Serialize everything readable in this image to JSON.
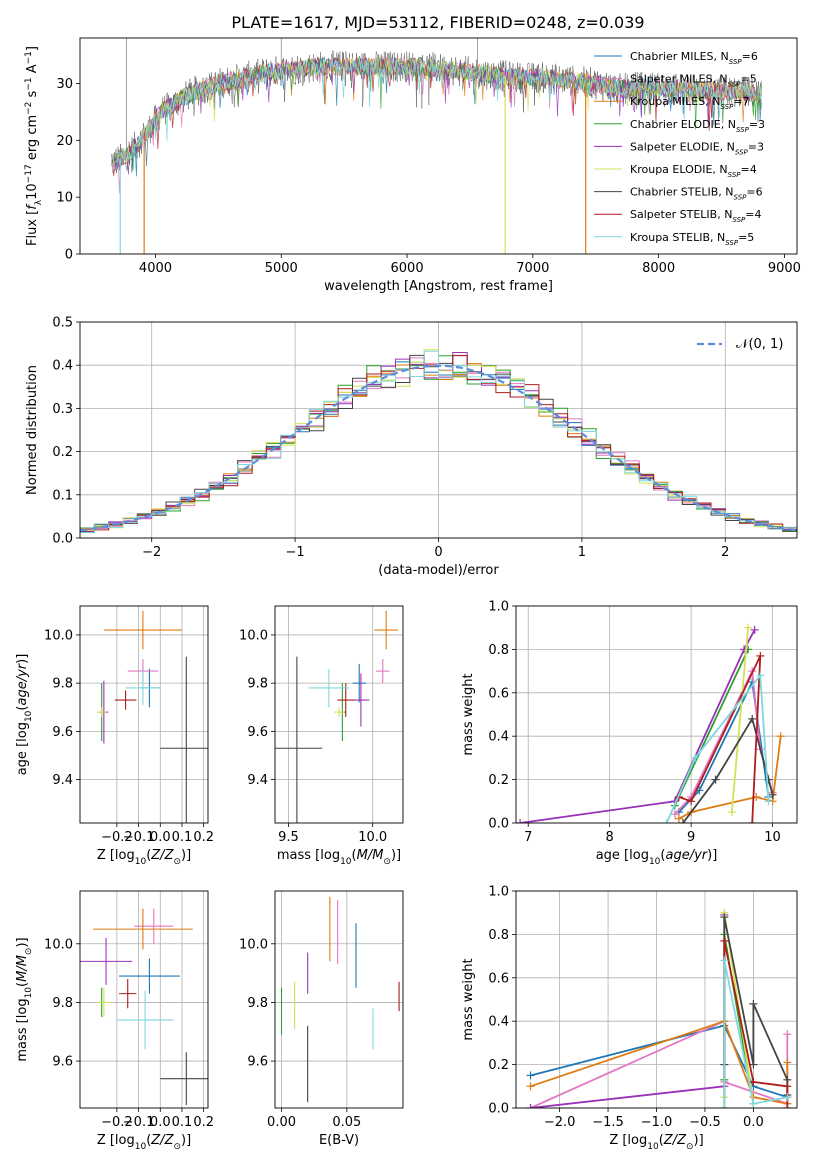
{
  "figure_title": "PLATE=1617, MJD=53112, FIBERID=0248, z=0.039",
  "colors": {
    "chabrier_miles": "#1f77b4",
    "salpeter_miles": "#e377c2",
    "kroupa_miles": "#e07b12",
    "chabrier_elodie": "#2ca02c",
    "salpeter_elodie": "#9b30b8",
    "kroupa_elodie": "#d4e157",
    "chabrier_stelib": "#444444",
    "salpeter_stelib": "#b01c1c",
    "kroupa_stelib": "#7fd8dd",
    "normal_curve": "#5b8fdb"
  },
  "chart_data": [
    {
      "id": "spectrum",
      "type": "line",
      "xlabel": "wavelength [Angstrom, rest frame]",
      "ylabel": "Flux [f_λ10^-17 erg cm^-2 s^-1 A^-1]",
      "xlim": [
        3400,
        9100
      ],
      "ylim": [
        0,
        38
      ],
      "xticks": [
        4000,
        5000,
        6000,
        7000,
        8000,
        9000
      ],
      "yticks": [
        0,
        10,
        20,
        30
      ],
      "legend_position": "upper-right",
      "series": [
        {
          "name": "Chabrier MILES, N_SSP=6",
          "color_key": "chabrier_miles"
        },
        {
          "name": "Salpeter MILES, N_SSP=5",
          "color_key": "salpeter_miles"
        },
        {
          "name": "Kroupa MILES, N_SSP=7",
          "color_key": "kroupa_miles"
        },
        {
          "name": "Chabrier ELODIE, N_SSP=3",
          "color_key": "chabrier_elodie"
        },
        {
          "name": "Salpeter ELODIE, N_SSP=3",
          "color_key": "salpeter_elodie"
        },
        {
          "name": "Kroupa ELODIE, N_SSP=4",
          "color_key": "kroupa_elodie"
        },
        {
          "name": "Chabrier STELIB, N_SSP=6",
          "color_key": "chabrier_stelib"
        },
        {
          "name": "Salpeter STELIB, N_SSP=4",
          "color_key": "salpeter_stelib"
        },
        {
          "name": "Kroupa STELIB, N_SSP=5",
          "color_key": "kroupa_stelib"
        }
      ],
      "continuum": {
        "x": [
          3650,
          3750,
          3850,
          3950,
          4050,
          4150,
          4300,
          4500,
          4700,
          4900,
          5100,
          5300,
          5500,
          5700,
          5900,
          6100,
          6300,
          6500,
          6700,
          6900,
          7100,
          7300,
          7500,
          7700,
          7900,
          8100,
          8300,
          8500,
          8700,
          8820
        ],
        "y": [
          16,
          17,
          19,
          22,
          25,
          26.5,
          28.5,
          30,
          31,
          32,
          32.5,
          33,
          33,
          33,
          33,
          33,
          32.5,
          32,
          31.5,
          31,
          31,
          30.5,
          30,
          29,
          29.5,
          29,
          29,
          28.5,
          28.5,
          28
        ]
      },
      "dips": [
        {
          "x": 3720,
          "y": 0,
          "color_key": "kroupa_stelib"
        },
        {
          "x": 3910,
          "y": 0,
          "color_key": "kroupa_miles"
        },
        {
          "x": 6780,
          "y": 0,
          "color_key": "kroupa_elodie"
        },
        {
          "x": 7420,
          "y": 0,
          "color_key": "kroupa_miles"
        }
      ]
    },
    {
      "id": "residuals",
      "type": "histogram",
      "xlabel": "(data-model)/error",
      "ylabel": "Normed distribution",
      "xlim": [
        -2.5,
        2.5
      ],
      "ylim": [
        0,
        0.5
      ],
      "xticks": [
        -2,
        -1,
        0,
        1,
        2
      ],
      "yticks": [
        0.0,
        0.1,
        0.2,
        0.3,
        0.4,
        0.5
      ],
      "legend_position": "upper-right",
      "legend": [
        {
          "name": "𝒩(0, 1)",
          "color_key": "normal_curve",
          "style": "dashed"
        }
      ],
      "bin_width": 0.1
    },
    {
      "id": "age_vs_Z",
      "type": "errorbar",
      "xlabel": "Z [log10(Z/Z⊙)]",
      "ylabel": "age [log10(age/yr)]",
      "xlim": [
        -0.37,
        0.22
      ],
      "ylim": [
        9.22,
        10.12
      ],
      "xticks": [
        -0.2,
        -0.1,
        0.0,
        0.1,
        0.2
      ],
      "yticks": [
        9.4,
        9.6,
        9.8,
        10.0
      ],
      "points": [
        {
          "x": -0.05,
          "xerr": 0.05,
          "y": 9.78,
          "yerr": 0.08,
          "color_key": "chabrier_miles"
        },
        {
          "x": -0.08,
          "xerr": 0.07,
          "y": 9.85,
          "yerr": 0.05,
          "color_key": "salpeter_miles"
        },
        {
          "x": -0.08,
          "xerr": 0.18,
          "y": 10.02,
          "yerr": 0.08,
          "color_key": "kroupa_miles"
        },
        {
          "x": -0.27,
          "xerr": 0.02,
          "y": 9.68,
          "yerr": 0.12,
          "color_key": "chabrier_elodie"
        },
        {
          "x": -0.26,
          "xerr": 0.02,
          "y": 9.68,
          "yerr": 0.13,
          "color_key": "salpeter_elodie"
        },
        {
          "x": -0.27,
          "xerr": 0.02,
          "y": 9.68,
          "yerr": 0.02,
          "color_key": "kroupa_elodie"
        },
        {
          "x": 0.12,
          "xerr": 0.12,
          "y": 9.53,
          "yerr": 0.38,
          "color_key": "chabrier_stelib"
        },
        {
          "x": -0.16,
          "xerr": 0.05,
          "y": 9.73,
          "yerr": 0.04,
          "color_key": "salpeter_stelib"
        },
        {
          "x": -0.08,
          "xerr": 0.08,
          "y": 9.78,
          "yerr": 0.07,
          "color_key": "kroupa_stelib"
        }
      ]
    },
    {
      "id": "age_vs_mass",
      "type": "errorbar",
      "xlabel": "mass [log10(M/M⊙)]",
      "ylabel": "",
      "xlim": [
        9.42,
        10.18
      ],
      "ylim": [
        9.22,
        10.12
      ],
      "xticks": [
        9.5,
        10.0
      ],
      "yticks": [
        9.4,
        9.6,
        9.8,
        10.0
      ],
      "points": [
        {
          "x": 9.92,
          "xerr": 0.04,
          "y": 9.8,
          "yerr": 0.08,
          "color_key": "chabrier_miles"
        },
        {
          "x": 10.06,
          "xerr": 0.04,
          "y": 9.85,
          "yerr": 0.05,
          "color_key": "salpeter_miles"
        },
        {
          "x": 10.08,
          "xerr": 0.07,
          "y": 10.02,
          "yerr": 0.08,
          "color_key": "kroupa_miles"
        },
        {
          "x": 9.82,
          "xerr": 0.02,
          "y": 9.68,
          "yerr": 0.12,
          "color_key": "chabrier_elodie"
        },
        {
          "x": 9.93,
          "xerr": 0.05,
          "y": 9.73,
          "yerr": 0.11,
          "color_key": "salpeter_elodie"
        },
        {
          "x": 9.8,
          "xerr": 0.03,
          "y": 9.68,
          "yerr": 0.02,
          "color_key": "kroupa_elodie"
        },
        {
          "x": 9.55,
          "xerr": 0.15,
          "y": 9.53,
          "yerr": 0.38,
          "color_key": "chabrier_stelib"
        },
        {
          "x": 9.84,
          "xerr": 0.05,
          "y": 9.73,
          "yerr": 0.07,
          "color_key": "salpeter_stelib"
        },
        {
          "x": 9.74,
          "xerr": 0.12,
          "y": 9.78,
          "yerr": 0.08,
          "color_key": "kroupa_stelib"
        }
      ]
    },
    {
      "id": "massweight_vs_age",
      "type": "line",
      "xlabel": "age [log10(age/yr)]",
      "ylabel": "mass weight",
      "xlim": [
        6.85,
        10.3
      ],
      "ylim": [
        0,
        1
      ],
      "xticks": [
        7,
        8,
        9,
        10
      ],
      "yticks": [
        0.0,
        0.2,
        0.4,
        0.6,
        0.8,
        1.0
      ],
      "series": [
        {
          "color_key": "chabrier_miles",
          "x": [
            8.85,
            9.1,
            9.75,
            9.95
          ],
          "y": [
            0.05,
            0.15,
            0.65,
            0.12
          ]
        },
        {
          "color_key": "salpeter_miles",
          "x": [
            8.8,
            9.0,
            9.75,
            9.85,
            10.0
          ],
          "y": [
            0.04,
            0.12,
            0.7,
            0.34,
            0.14
          ]
        },
        {
          "color_key": "kroupa_miles",
          "x": [
            8.85,
            9.0,
            9.8,
            10.0,
            10.1
          ],
          "y": [
            0.02,
            0.05,
            0.12,
            0.1,
            0.4
          ]
        },
        {
          "color_key": "chabrier_elodie",
          "x": [
            8.8,
            9.7
          ],
          "y": [
            0.08,
            0.8
          ]
        },
        {
          "color_key": "salpeter_elodie",
          "x": [
            6.9,
            8.8,
            9.65,
            9.78
          ],
          "y": [
            0.0,
            0.1,
            0.8,
            0.89
          ]
        },
        {
          "color_key": "kroupa_elodie",
          "x": [
            9.5,
            9.7
          ],
          "y": [
            0.05,
            0.9
          ]
        },
        {
          "color_key": "chabrier_stelib",
          "x": [
            8.9,
            9.3,
            9.75,
            9.95,
            10.0
          ],
          "y": [
            0.0,
            0.2,
            0.48,
            0.2,
            0.13
          ]
        },
        {
          "color_key": "salpeter_stelib",
          "x": [
            8.85,
            9.0,
            9.85,
            9.75
          ],
          "y": [
            0.12,
            0.1,
            0.77,
            0.0
          ]
        },
        {
          "color_key": "kroupa_stelib",
          "x": [
            8.7,
            9.05,
            9.85,
            9.95
          ],
          "y": [
            0.0,
            0.3,
            0.68,
            0.1
          ]
        }
      ]
    },
    {
      "id": "mass_vs_Z",
      "type": "errorbar",
      "xlabel": "Z [log10(Z/Z⊙)]",
      "ylabel": "mass [log10(M/M⊙)]",
      "xlim": [
        -0.37,
        0.22
      ],
      "ylim": [
        9.44,
        10.18
      ],
      "xticks": [
        -0.2,
        -0.1,
        0.0,
        0.1,
        0.2
      ],
      "yticks": [
        9.6,
        9.8,
        10.0
      ],
      "points": [
        {
          "x": -0.05,
          "xerr": 0.14,
          "y": 9.89,
          "yerr": 0.06,
          "color_key": "chabrier_miles"
        },
        {
          "x": -0.03,
          "xerr": 0.09,
          "y": 10.06,
          "yerr": 0.06,
          "color_key": "salpeter_miles"
        },
        {
          "x": -0.08,
          "xerr": 0.23,
          "y": 10.05,
          "yerr": 0.07,
          "color_key": "kroupa_miles"
        },
        {
          "x": -0.27,
          "xerr": 0.02,
          "y": 9.8,
          "yerr": 0.05,
          "color_key": "chabrier_elodie"
        },
        {
          "x": -0.25,
          "xerr": 0.12,
          "y": 9.94,
          "yerr": 0.08,
          "color_key": "salpeter_elodie"
        },
        {
          "x": -0.26,
          "xerr": 0.03,
          "y": 9.8,
          "yerr": 0.05,
          "color_key": "kroupa_elodie"
        },
        {
          "x": 0.12,
          "xerr": 0.12,
          "y": 9.54,
          "yerr": 0.09,
          "color_key": "chabrier_stelib"
        },
        {
          "x": -0.15,
          "xerr": 0.04,
          "y": 9.83,
          "yerr": 0.05,
          "color_key": "salpeter_stelib"
        },
        {
          "x": -0.07,
          "xerr": 0.13,
          "y": 9.74,
          "yerr": 0.1,
          "color_key": "kroupa_stelib"
        }
      ]
    },
    {
      "id": "mass_vs_ebv",
      "type": "errorbar",
      "xlabel": "E(B-V)",
      "ylabel": "",
      "xlim": [
        -0.005,
        0.093
      ],
      "ylim": [
        9.44,
        10.18
      ],
      "xticks": [
        0.0,
        0.05
      ],
      "yticks": [
        9.6,
        9.8,
        10.0
      ],
      "points": [
        {
          "x": 0.057,
          "xerr": 0,
          "y": 9.96,
          "yerr": 0.11,
          "color_key": "chabrier_miles"
        },
        {
          "x": 0.043,
          "xerr": 0,
          "y": 10.04,
          "yerr": 0.11,
          "color_key": "salpeter_miles"
        },
        {
          "x": 0.037,
          "xerr": 0,
          "y": 10.05,
          "yerr": 0.11,
          "color_key": "kroupa_miles"
        },
        {
          "x": 0.0,
          "xerr": 0,
          "y": 9.77,
          "yerr": 0.08,
          "color_key": "chabrier_elodie"
        },
        {
          "x": 0.02,
          "xerr": 0,
          "y": 9.9,
          "yerr": 0.07,
          "color_key": "salpeter_elodie"
        },
        {
          "x": 0.01,
          "xerr": 0,
          "y": 9.79,
          "yerr": 0.08,
          "color_key": "kroupa_elodie"
        },
        {
          "x": 0.02,
          "xerr": 0,
          "y": 9.59,
          "yerr": 0.13,
          "color_key": "chabrier_stelib"
        },
        {
          "x": 0.09,
          "xerr": 0,
          "y": 9.82,
          "yerr": 0.05,
          "color_key": "salpeter_stelib"
        },
        {
          "x": 0.07,
          "xerr": 0,
          "y": 9.71,
          "yerr": 0.07,
          "color_key": "kroupa_stelib"
        }
      ]
    },
    {
      "id": "massweight_vs_Z",
      "type": "line",
      "xlabel": "Z [log10(Z/Z⊙)]",
      "ylabel": "mass weight",
      "xlim": [
        -2.45,
        0.45
      ],
      "ylim": [
        0,
        1
      ],
      "xticks": [
        -2.0,
        -1.5,
        -1.0,
        -0.5,
        0.0
      ],
      "yticks": [
        0.0,
        0.2,
        0.4,
        0.6,
        0.8,
        1.0
      ],
      "series": [
        {
          "color_key": "chabrier_miles",
          "x": [
            -2.3,
            -0.3,
            0.0,
            0.35
          ],
          "y": [
            0.15,
            0.38,
            0.1,
            0.05
          ]
        },
        {
          "color_key": "salpeter_miles",
          "x": [
            -2.3,
            -0.3,
            -0.3,
            0.35,
            0.35
          ],
          "y": [
            0.0,
            0.4,
            0.12,
            0.02,
            0.34
          ]
        },
        {
          "color_key": "kroupa_miles",
          "x": [
            -2.3,
            -0.3,
            0.0,
            0.35,
            0.35
          ],
          "y": [
            0.1,
            0.4,
            0.05,
            0.02,
            0.21
          ]
        },
        {
          "color_key": "chabrier_elodie",
          "x": [
            -0.3,
            -0.3,
            0.0
          ],
          "y": [
            0.13,
            0.8,
            0.02
          ]
        },
        {
          "color_key": "salpeter_elodie",
          "x": [
            -2.3,
            -0.3,
            -0.3
          ],
          "y": [
            0.0,
            0.1,
            0.89
          ]
        },
        {
          "color_key": "kroupa_elodie",
          "x": [
            -0.3,
            -0.3,
            0.0
          ],
          "y": [
            0.05,
            0.9,
            0.02
          ]
        },
        {
          "color_key": "chabrier_stelib",
          "x": [
            -0.3,
            -0.3,
            0.0,
            0.0,
            0.35,
            0.35
          ],
          "y": [
            0.2,
            0.88,
            0.2,
            0.48,
            0.13,
            0.06
          ]
        },
        {
          "color_key": "salpeter_stelib",
          "x": [
            -0.3,
            -0.3,
            0.0,
            0.35,
            0.35
          ],
          "y": [
            0.0,
            0.77,
            0.12,
            0.1,
            0.0
          ]
        },
        {
          "color_key": "kroupa_stelib",
          "x": [
            -0.3,
            -0.3,
            0.0,
            0.35
          ],
          "y": [
            0.0,
            0.68,
            0.02,
            0.05
          ]
        }
      ]
    }
  ]
}
